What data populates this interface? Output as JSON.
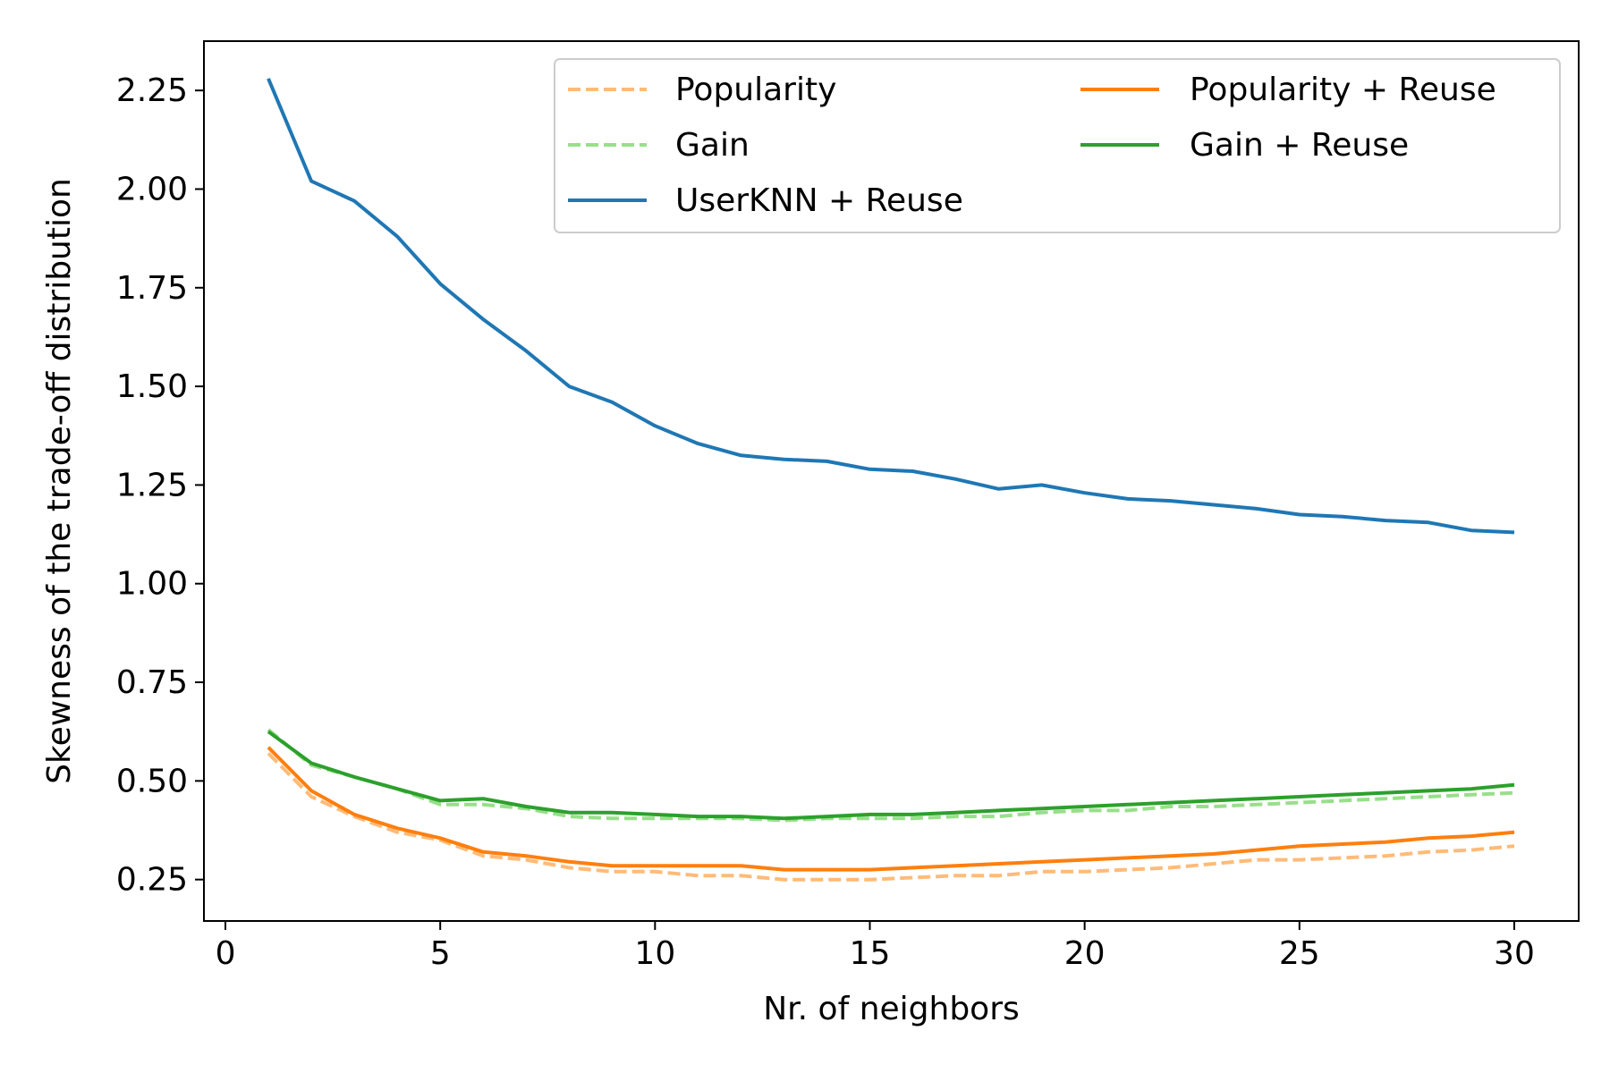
{
  "chart_data": {
    "type": "line",
    "title": "",
    "xlabel": "Nr. of neighbors",
    "ylabel": "Skewness of the trade-off distribution",
    "xlim": [
      -0.5,
      31.5
    ],
    "ylim": [
      0.145,
      2.375
    ],
    "xticks": [
      0,
      5,
      10,
      15,
      20,
      25,
      30
    ],
    "yticks": [
      0.25,
      0.5,
      0.75,
      1.0,
      1.25,
      1.5,
      1.75,
      2.0,
      2.25
    ],
    "ytick_labels": [
      "0.25",
      "0.50",
      "0.75",
      "1.00",
      "1.25",
      "1.50",
      "1.75",
      "2.00",
      "2.25"
    ],
    "grid": false,
    "legend_position": "top-right",
    "x": [
      1,
      2,
      3,
      4,
      5,
      6,
      7,
      8,
      9,
      10,
      11,
      12,
      13,
      14,
      15,
      16,
      17,
      18,
      19,
      20,
      21,
      22,
      23,
      24,
      25,
      26,
      27,
      28,
      29,
      30
    ],
    "series": [
      {
        "name": "Popularity",
        "color": "#ffbb78",
        "dash": "dashed",
        "values": [
          0.57,
          0.46,
          0.41,
          0.37,
          0.35,
          0.31,
          0.3,
          0.28,
          0.27,
          0.27,
          0.26,
          0.26,
          0.25,
          0.25,
          0.25,
          0.255,
          0.26,
          0.26,
          0.27,
          0.27,
          0.275,
          0.28,
          0.29,
          0.3,
          0.3,
          0.305,
          0.31,
          0.32,
          0.325,
          0.335
        ]
      },
      {
        "name": "Gain",
        "color": "#98df8a",
        "dash": "dashed",
        "values": [
          0.63,
          0.54,
          0.51,
          0.48,
          0.44,
          0.44,
          0.43,
          0.41,
          0.405,
          0.405,
          0.405,
          0.405,
          0.4,
          0.405,
          0.405,
          0.405,
          0.41,
          0.41,
          0.42,
          0.425,
          0.425,
          0.435,
          0.435,
          0.44,
          0.445,
          0.45,
          0.455,
          0.46,
          0.465,
          0.47
        ]
      },
      {
        "name": "UserKNN + Reuse",
        "color": "#1f77b4",
        "dash": "solid",
        "values": [
          2.28,
          2.02,
          1.97,
          1.88,
          1.76,
          1.67,
          1.59,
          1.5,
          1.46,
          1.4,
          1.355,
          1.325,
          1.315,
          1.31,
          1.29,
          1.285,
          1.265,
          1.24,
          1.25,
          1.23,
          1.215,
          1.21,
          1.2,
          1.19,
          1.175,
          1.17,
          1.16,
          1.155,
          1.135,
          1.13
        ]
      },
      {
        "name": "Popularity + Reuse",
        "color": "#ff7f0e",
        "dash": "solid",
        "values": [
          0.585,
          0.475,
          0.415,
          0.38,
          0.355,
          0.32,
          0.31,
          0.295,
          0.285,
          0.285,
          0.285,
          0.285,
          0.275,
          0.275,
          0.275,
          0.28,
          0.285,
          0.29,
          0.295,
          0.3,
          0.305,
          0.31,
          0.315,
          0.325,
          0.335,
          0.34,
          0.345,
          0.355,
          0.36,
          0.37
        ]
      },
      {
        "name": "Gain + Reuse",
        "color": "#2ca02c",
        "dash": "solid",
        "values": [
          0.625,
          0.545,
          0.51,
          0.48,
          0.45,
          0.455,
          0.435,
          0.42,
          0.42,
          0.415,
          0.41,
          0.41,
          0.405,
          0.41,
          0.415,
          0.415,
          0.42,
          0.425,
          0.43,
          0.435,
          0.44,
          0.445,
          0.45,
          0.455,
          0.46,
          0.465,
          0.47,
          0.475,
          0.48,
          0.49
        ]
      }
    ]
  }
}
